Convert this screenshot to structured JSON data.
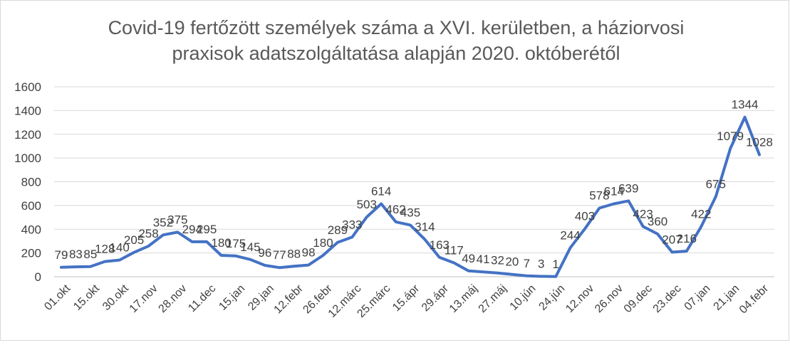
{
  "chart_data": {
    "type": "line",
    "title_lines": [
      "Covid-19 fertőzött személyek száma a XVI. kerületben, a háziorvosi",
      "praxisok adatszolgáltatása alapján 2020. októberétől"
    ],
    "xlabel": "",
    "ylabel": "",
    "ylim": [
      0,
      1600
    ],
    "yticks": [
      0,
      200,
      400,
      600,
      800,
      1000,
      1200,
      1400,
      1600
    ],
    "grid": true,
    "legend": "none",
    "line_color": "#4472C4",
    "tick_labels": [
      "01.okt",
      "15.okt",
      "30.okt",
      "17.nov",
      "28.nov",
      "11.dec",
      "15.jan",
      "29.jan",
      "12.febr",
      "26.febr",
      "12.márc",
      "25.márc",
      "15.ápr",
      "29.ápr",
      "13.máj",
      "27.máj",
      "10.jún",
      "24.jún",
      "12.nov",
      "26.nov",
      "09.dec",
      "23.dec",
      "07.jan",
      "21.jan",
      "04.febr"
    ],
    "series": [
      {
        "values": [
          79,
          83,
          85,
          128,
          140,
          205,
          258,
          352,
          375,
          294,
          295,
          180,
          175,
          145,
          96,
          77,
          88,
          98,
          180,
          289,
          333,
          503,
          614,
          462,
          435,
          314,
          163,
          117,
          49,
          41,
          32,
          20,
          7,
          3,
          1,
          244,
          403,
          578,
          614,
          639,
          423,
          360,
          207,
          216,
          422,
          675,
          1079,
          1344,
          1028
        ]
      }
    ]
  }
}
